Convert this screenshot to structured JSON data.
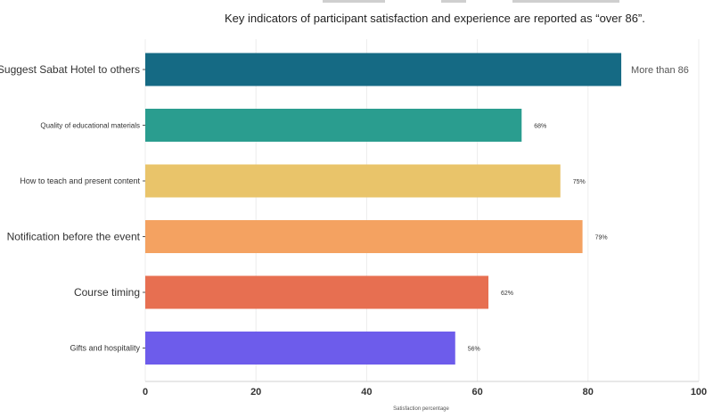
{
  "subtitle": "Key indicators of participant satisfaction and experience are reported as “over 86”.",
  "chart_data": {
    "type": "bar",
    "orientation": "horizontal",
    "categories": [
      "Suggest Sabat Hotel to others",
      "Quality of educational materials",
      "How to teach and present content",
      "Notification before the event",
      "Course timing",
      "Gifts and hospitality"
    ],
    "values": [
      86,
      68,
      75,
      79,
      62,
      56
    ],
    "labels": [
      "More than 86",
      "68%",
      "75%",
      "79%",
      "62%",
      "56%"
    ],
    "colors": [
      "#156a84",
      "#2a9d8f",
      "#e9c46a",
      "#f4a261",
      "#e76f51",
      "#6d5ceb"
    ],
    "xlabel": "Satisfaction percentage",
    "ylabel": "",
    "xlim": [
      0,
      100
    ],
    "xticks": [
      0,
      20,
      40,
      60,
      80,
      100
    ],
    "grid": "vertical"
  }
}
